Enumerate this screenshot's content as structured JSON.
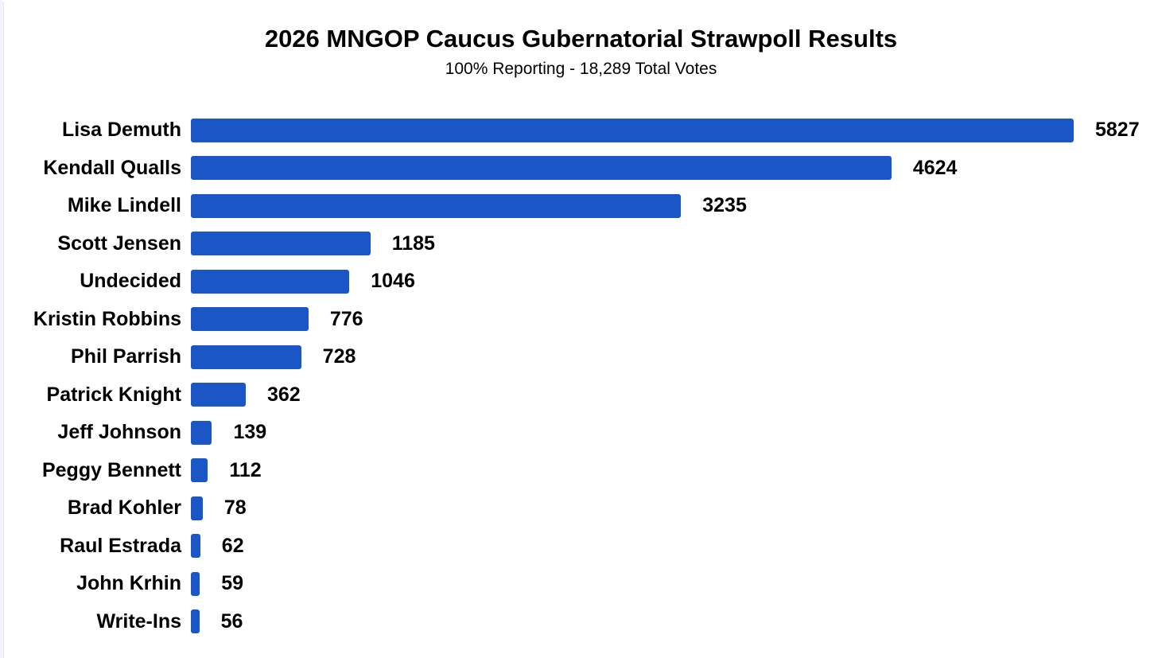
{
  "chart_data": {
    "type": "bar",
    "orientation": "horizontal",
    "title": "2026 MNGOP Caucus Gubernatorial Strawpoll Results",
    "subtitle": "100% Reporting - 18,289 Total Votes",
    "categories": [
      "Lisa Demuth",
      "Kendall Qualls",
      "Mike Lindell",
      "Scott Jensen",
      "Undecided",
      "Kristin Robbins",
      "Phil Parrish",
      "Patrick Knight",
      "Jeff Johnson",
      "Peggy Bennett",
      "Brad Kohler",
      "Raul Estrada",
      "John Krhin",
      "Write-Ins"
    ],
    "values": [
      5827,
      4624,
      3235,
      1185,
      1046,
      776,
      728,
      362,
      139,
      112,
      78,
      62,
      59,
      56
    ],
    "xlim": [
      0,
      5827
    ],
    "grid": false,
    "legend": false,
    "value_label_position": "end-of-bar",
    "bar_color": "#1b56c6",
    "text_color": "#000000",
    "background_color": "#ffffff",
    "page_edge_color": "#f4f5fa"
  }
}
